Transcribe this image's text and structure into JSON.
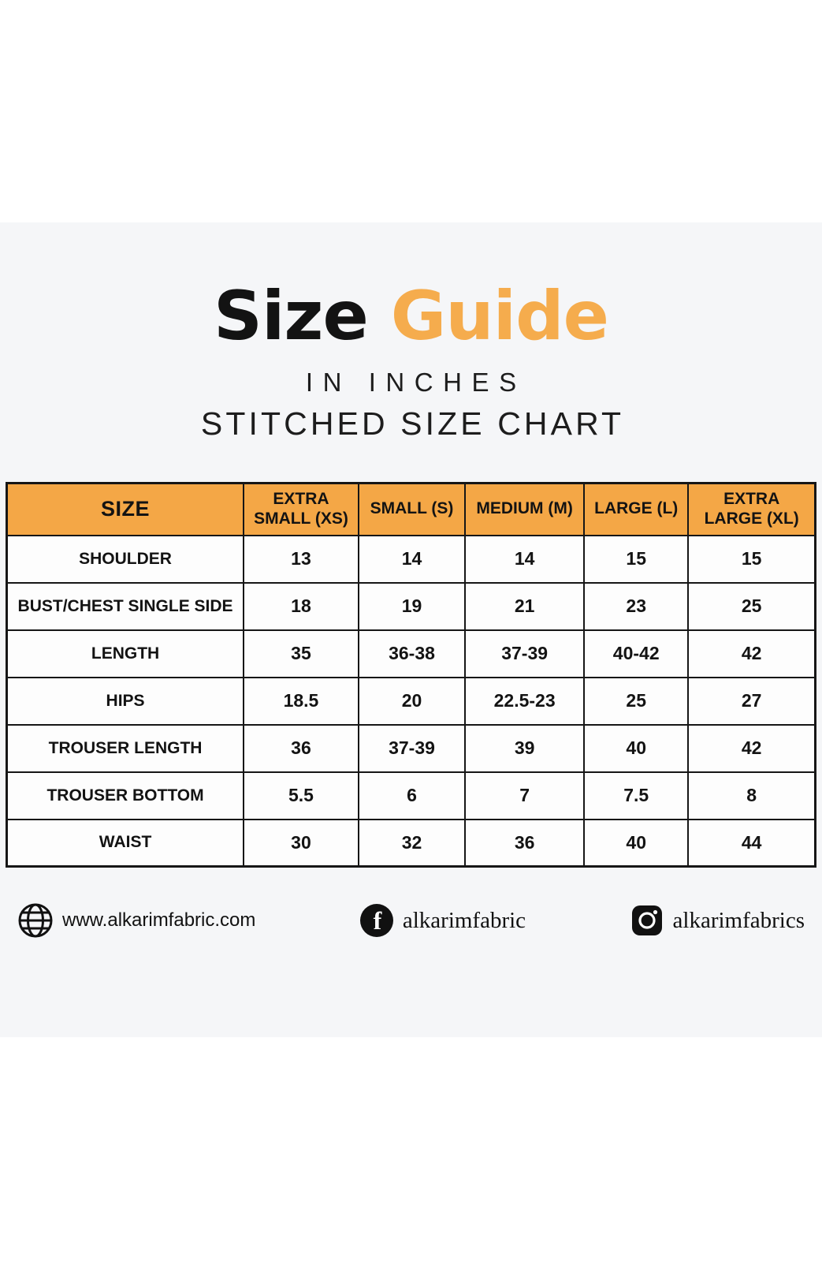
{
  "header": {
    "title_word_1": "Size",
    "title_word_2": "Guide",
    "subtitle_units": "IN INCHES",
    "subtitle_chart": "STITCHED SIZE CHART"
  },
  "colors": {
    "accent_orange": "#F4A746",
    "title_orange": "#F5AC4D",
    "text_black": "#151515",
    "panel_gray": "#F5F6F8",
    "cell_white": "#FDFDFD"
  },
  "chart_data": {
    "type": "table",
    "title": "Size Guide",
    "columns": [
      "SIZE",
      "EXTRA SMALL (XS)",
      "SMALL (S)",
      "MEDIUM (M)",
      "LARGE (L)",
      "EXTRA LARGE (XL)"
    ],
    "rows": [
      {
        "label": "SHOULDER",
        "values": [
          "13",
          "14",
          "14",
          "15",
          "15"
        ]
      },
      {
        "label": "BUST/CHEST SINGLE SIDE",
        "values": [
          "18",
          "19",
          "21",
          "23",
          "25"
        ]
      },
      {
        "label": "LENGTH",
        "values": [
          "35",
          "36-38",
          "37-39",
          "40-42",
          "42"
        ]
      },
      {
        "label": "HIPS",
        "values": [
          "18.5",
          "20",
          "22.5-23",
          "25",
          "27"
        ]
      },
      {
        "label": "TROUSER LENGTH",
        "values": [
          "36",
          "37-39",
          "39",
          "40",
          "42"
        ]
      },
      {
        "label": "TROUSER BOTTOM",
        "values": [
          "5.5",
          "6",
          "7",
          "7.5",
          "8"
        ]
      },
      {
        "label": "WAIST",
        "values": [
          "30",
          "32",
          "36",
          "40",
          "44"
        ]
      }
    ]
  },
  "footer": {
    "website": {
      "icon": "globe-icon",
      "text": "www.alkarimfabric.com"
    },
    "facebook": {
      "icon": "facebook-icon",
      "text": "alkarimfabric"
    },
    "instagram": {
      "icon": "instagram-icon",
      "text": "alkarimfabrics"
    }
  }
}
